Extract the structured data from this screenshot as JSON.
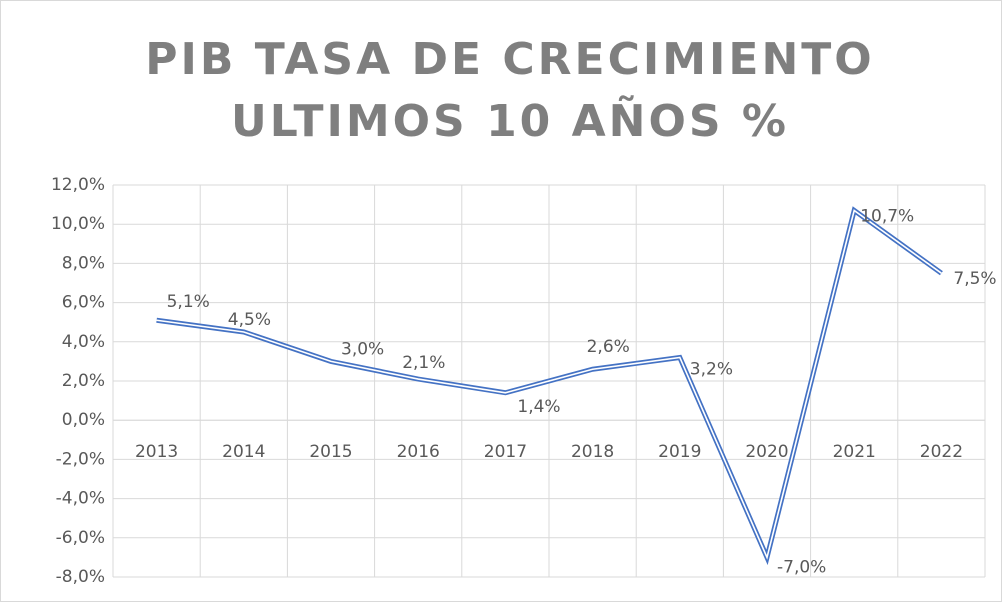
{
  "chart_data": {
    "type": "line",
    "title": [
      "PIB TASA DE CRECIMIENTO",
      "ULTIMOS 10 AÑOS %"
    ],
    "categories": [
      "2013",
      "2014",
      "2015",
      "2016",
      "2017",
      "2018",
      "2019",
      "2020",
      "2021",
      "2022"
    ],
    "series": [
      {
        "name": "PIB",
        "color": "#4472c4",
        "values": [
          5.1,
          4.5,
          3.0,
          2.1,
          1.4,
          2.6,
          3.2,
          -7.0,
          10.7,
          7.5
        ],
        "value_labels": [
          "5,1%",
          "4,5%",
          "3,0%",
          "2,1%",
          "1,4%",
          "2,6%",
          "3,2%",
          "-7,0%",
          "10,7%",
          "7,5%"
        ]
      }
    ],
    "ylim": [
      -8,
      12
    ],
    "yticks": [
      {
        "value": -8,
        "label": "-8,0%"
      },
      {
        "value": -6,
        "label": "-6,0%"
      },
      {
        "value": -4,
        "label": "-4,0%"
      },
      {
        "value": -2,
        "label": "-2,0%"
      },
      {
        "value": 0,
        "label": "0,0%"
      },
      {
        "value": 2,
        "label": "2,0%"
      },
      {
        "value": 4,
        "label": "4,0%"
      },
      {
        "value": 6,
        "label": "6,0%"
      },
      {
        "value": 8,
        "label": "8,0%"
      },
      {
        "value": 10,
        "label": "10,0%"
      },
      {
        "value": 12,
        "label": "12,0%"
      }
    ],
    "grid": true
  }
}
